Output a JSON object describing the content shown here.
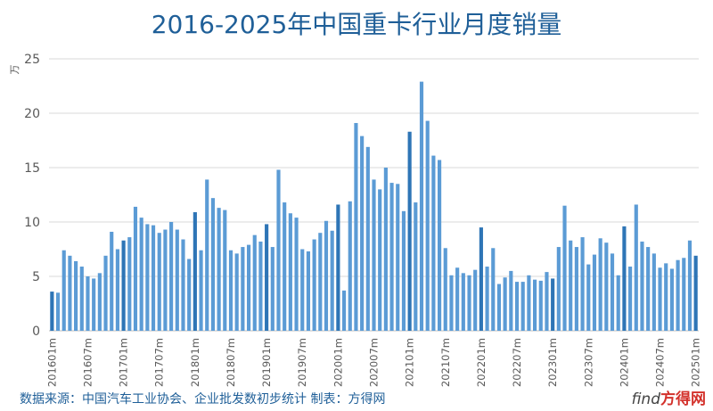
{
  "chart_data": {
    "type": "bar",
    "title": "2016-2025年中国重卡行业月度销量",
    "ylabel": "万",
    "xlabel": "",
    "ylim": [
      0,
      25
    ],
    "yticks": [
      0,
      5,
      10,
      15,
      20,
      25
    ],
    "grid": "horizontal",
    "legend": "none",
    "x_tick_labels": [
      "201601m",
      "201607m",
      "201701m",
      "201707m",
      "201801m",
      "201807m",
      "201901m",
      "201907m",
      "202001m",
      "202007m",
      "202101m",
      "202107m",
      "202201m",
      "202207m",
      "202301m",
      "202307m",
      "202401m",
      "202407m",
      "202501m"
    ],
    "colors": {
      "bar": "#5b9bd5",
      "bar_january": "#2e75b6",
      "grid": "#d9d9d9",
      "axis_text": "#595959"
    },
    "series": [
      {
        "values": [
          3.6,
          3.5,
          7.4,
          6.9,
          6.4,
          5.9,
          5.0,
          4.8,
          5.3,
          6.9,
          9.1,
          7.5,
          8.3,
          8.6,
          11.4,
          10.4,
          9.8,
          9.7,
          9.0,
          9.3,
          10.0,
          9.3,
          8.4,
          6.6,
          10.9,
          7.4,
          13.9,
          12.2,
          11.3,
          11.1,
          7.4,
          7.1,
          7.7,
          7.9,
          8.8,
          8.2,
          9.8,
          7.7,
          14.8,
          11.8,
          10.8,
          10.4,
          7.5,
          7.3,
          8.4,
          9.0,
          10.1,
          9.2,
          11.6,
          3.7,
          11.9,
          19.1,
          17.9,
          16.9,
          13.9,
          13.0,
          15.0,
          13.6,
          13.5,
          11.0,
          18.3,
          11.8,
          22.9,
          19.3,
          16.1,
          15.7,
          7.6,
          5.1,
          5.8,
          5.3,
          5.1,
          5.6,
          9.5,
          5.9,
          7.6,
          4.3,
          4.9,
          5.5,
          4.5,
          4.5,
          5.1,
          4.7,
          4.6,
          5.4,
          4.8,
          7.7,
          11.5,
          8.3,
          7.7,
          8.6,
          6.1,
          7.0,
          8.5,
          8.1,
          7.1,
          5.1,
          9.6,
          5.9,
          11.6,
          8.2,
          7.7,
          7.1,
          5.8,
          6.2,
          5.7,
          6.5,
          6.7,
          8.3,
          6.9
        ]
      }
    ]
  },
  "footer": {
    "source_text": "数据来源：中国汽车工业协会、企业批发数初步统计   制表：方得网"
  },
  "logo": {
    "find": "find",
    "brand": "方得网"
  }
}
